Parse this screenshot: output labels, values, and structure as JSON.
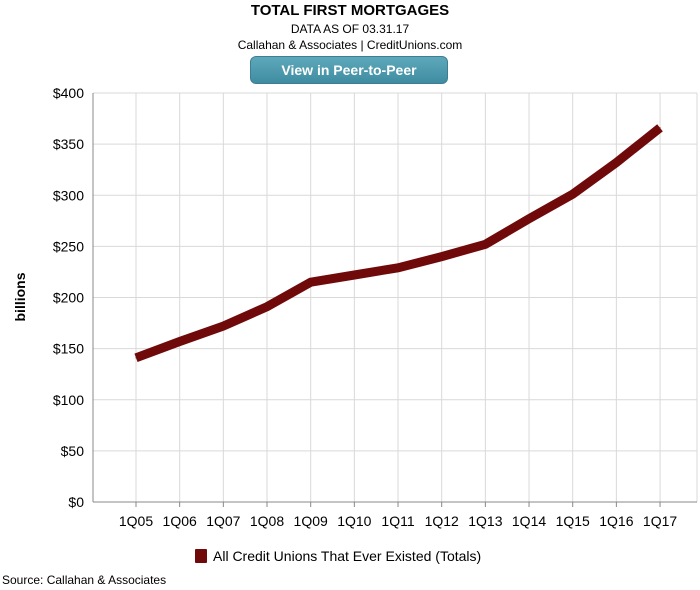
{
  "header": {
    "title": "TOTAL FIRST MORTGAGES",
    "subtitle": "DATA AS OF 03.31.17",
    "credit": "Callahan & Associates | CreditUnions.com",
    "button_label": "View in Peer-to-Peer"
  },
  "footer": {
    "source": "Source: Callahan & Associates"
  },
  "colors": {
    "series": "#700a0a",
    "grid": "#d9d9d9",
    "axis": "#888888",
    "button": "#4a96ab"
  },
  "chart_data": {
    "type": "line",
    "title": "TOTAL FIRST MORTGAGES",
    "xlabel": "",
    "ylabel": "billions",
    "categories": [
      "1Q05",
      "1Q06",
      "1Q07",
      "1Q08",
      "1Q09",
      "1Q10",
      "1Q11",
      "1Q12",
      "1Q13",
      "1Q14",
      "1Q15",
      "1Q16",
      "1Q17"
    ],
    "series": [
      {
        "name": "All Credit Unions That Ever Existed (Totals)",
        "values": [
          141,
          157,
          172,
          191,
          215,
          222,
          229,
          240,
          252,
          277,
          301,
          332,
          366
        ]
      }
    ],
    "ylim": [
      0,
      400
    ],
    "yticks": [
      0,
      50,
      100,
      150,
      200,
      250,
      300,
      350,
      400
    ],
    "ytick_labels": [
      "$0",
      "$50",
      "$100",
      "$150",
      "$200",
      "$250",
      "$300",
      "$350",
      "$400"
    ],
    "grid": true,
    "legend_position": "bottom"
  }
}
